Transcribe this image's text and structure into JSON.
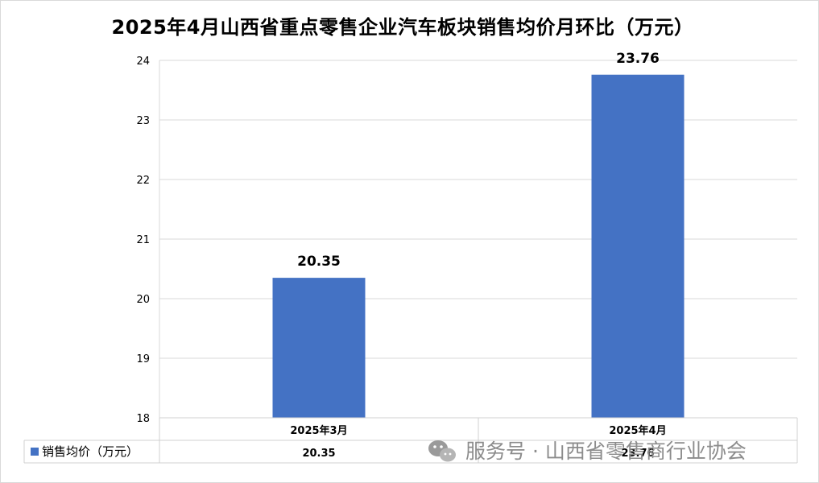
{
  "chart_data": {
    "type": "bar",
    "title": "2025年4月山西省重点零售企业汽车板块销售均价月环比（万元）",
    "categories": [
      "2025年3月",
      "2025年4月"
    ],
    "series": [
      {
        "name": "销售均价（万元）",
        "values": [
          20.35,
          23.76
        ],
        "color": "#4472c4"
      }
    ],
    "value_labels": [
      "20.35",
      "23.76"
    ],
    "ylim": [
      18,
      24
    ],
    "yticks": [
      18,
      19,
      20,
      21,
      22,
      23,
      24
    ],
    "grid": true,
    "legend": "data-table-bottom"
  },
  "watermark": {
    "icon": "wechat-icon",
    "text": "服务号 · 山西省零售商行业协会"
  }
}
